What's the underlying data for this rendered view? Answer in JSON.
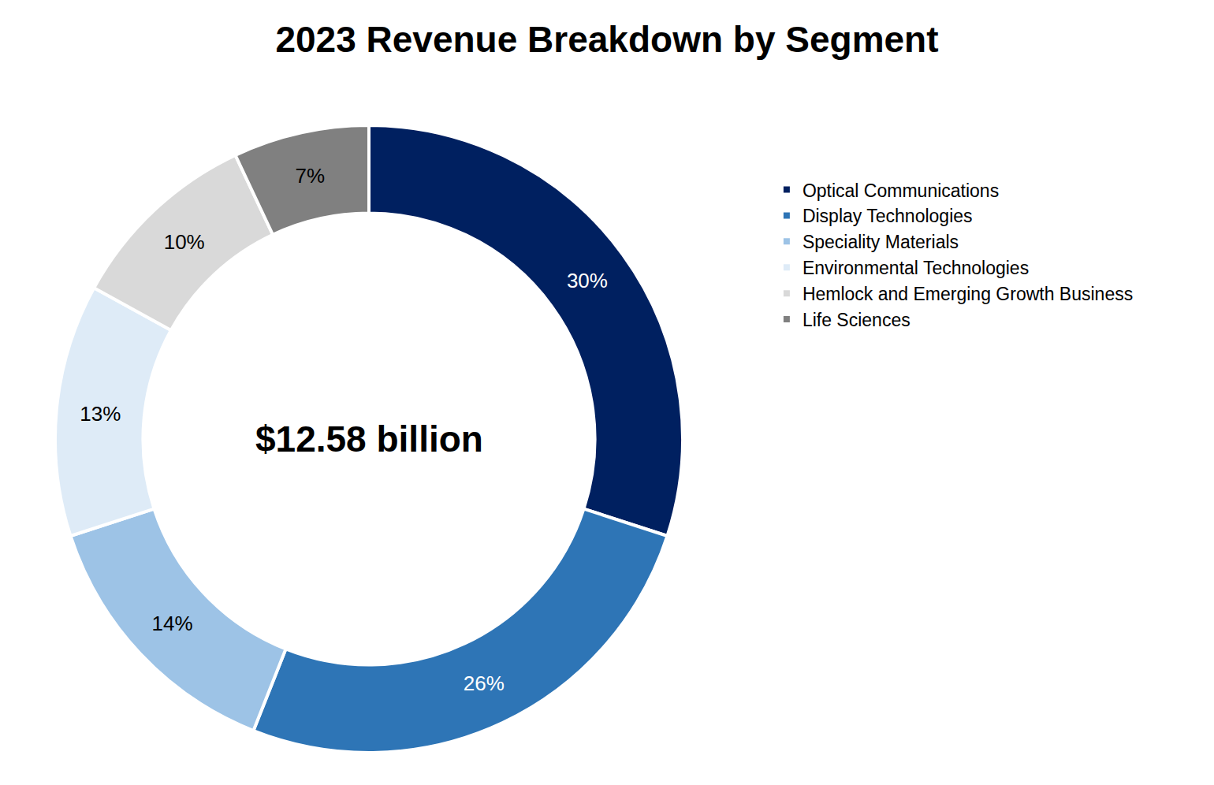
{
  "chart_data": {
    "type": "pie",
    "title": "2023 Revenue Breakdown by Segment",
    "annotations": [
      "$12.58 billion"
    ],
    "categories": [
      "Optical Communications",
      "Display Technologies",
      "Speciality Materials",
      "Environmental Technologies",
      "Hemlock and Emerging Growth Business",
      "Life Sciences"
    ],
    "values": [
      30,
      26,
      14,
      13,
      10,
      7
    ],
    "value_labels": [
      "30%",
      "26%",
      "14%",
      "13%",
      "10%",
      "7%"
    ],
    "colors": [
      "#002060",
      "#2E75B6",
      "#9DC3E6",
      "#DEEBF7",
      "#D9D9D9",
      "#808080"
    ],
    "data_labels": true,
    "legend": "right"
  }
}
